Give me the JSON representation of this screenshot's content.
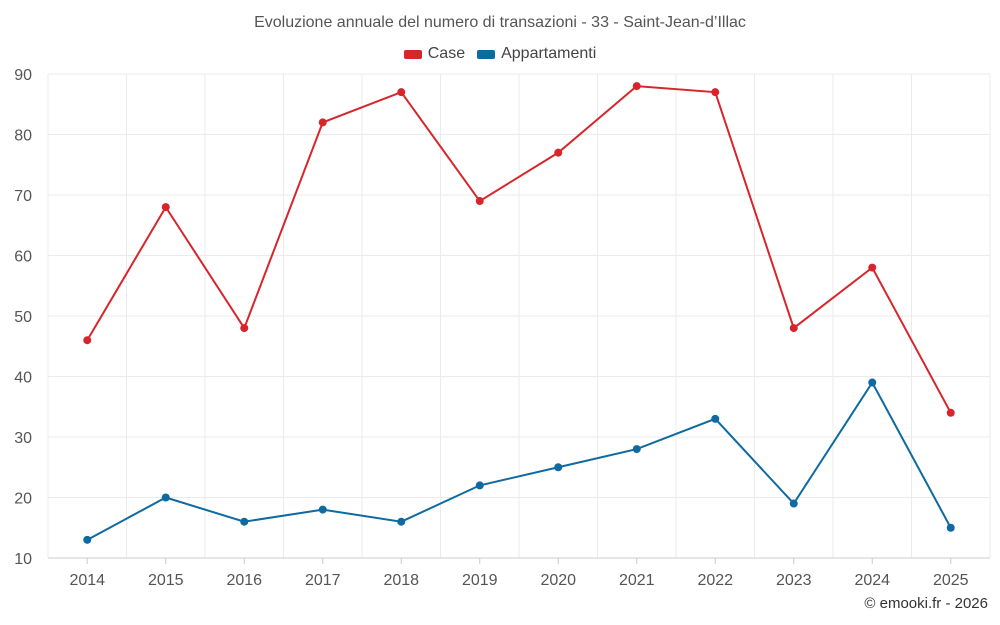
{
  "chart_data": {
    "type": "line",
    "title": "Evoluzione annuale del numero di transazioni - 33 - Saint-Jean-d’Illac",
    "x": [
      "2014",
      "2015",
      "2016",
      "2017",
      "2018",
      "2019",
      "2020",
      "2021",
      "2022",
      "2023",
      "2024",
      "2025"
    ],
    "series": [
      {
        "name": "Case",
        "color": "#d7262b",
        "values": [
          46,
          68,
          48,
          82,
          87,
          69,
          77,
          88,
          87,
          48,
          58,
          34
        ]
      },
      {
        "name": "Appartamenti",
        "color": "#0e6aa0",
        "values": [
          13,
          20,
          16,
          18,
          16,
          22,
          25,
          28,
          33,
          19,
          39,
          15
        ]
      }
    ],
    "ylim": [
      10,
      90
    ],
    "yticks": [
      "10",
      "20",
      "30",
      "40",
      "50",
      "60",
      "70",
      "80",
      "90"
    ],
    "grid": true,
    "legend_position": "top-center",
    "xlabel": "",
    "ylabel": ""
  },
  "credit": "© emooki.fr - 2026"
}
